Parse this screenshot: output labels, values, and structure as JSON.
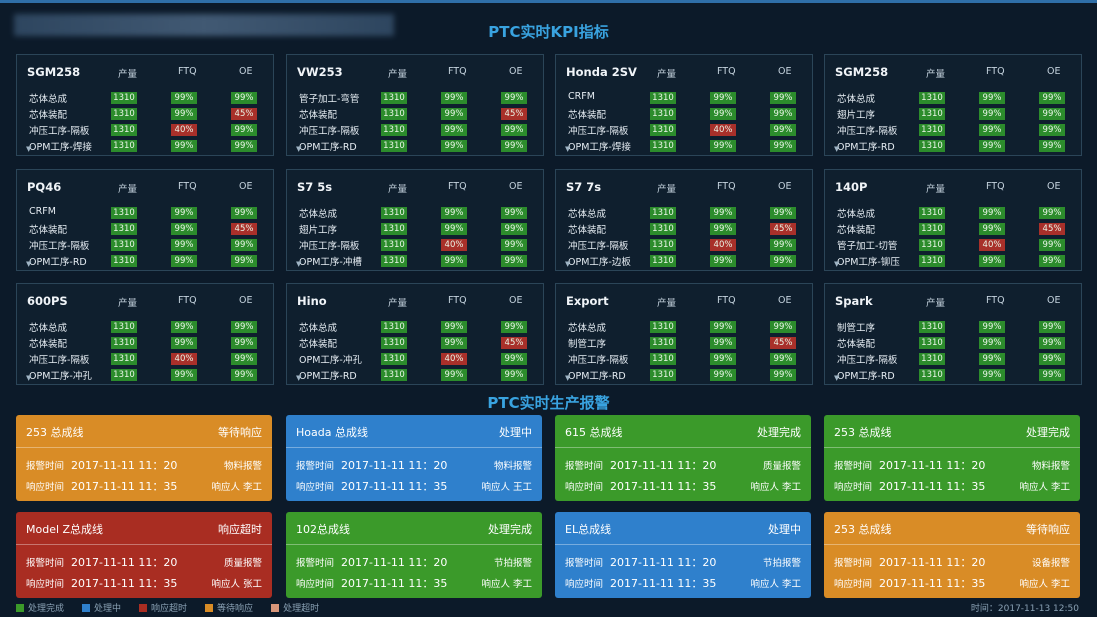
{
  "header": {
    "kpi_title": "PTC实时KPI指标",
    "alarm_title": "PTC实时生产报警"
  },
  "kpi_columns": {
    "output": "产量",
    "ftq": "FTQ",
    "oe": "OE"
  },
  "kpi_cards": [
    {
      "name": "SGM258",
      "rows": [
        [
          "芯体总成",
          "1310",
          "99%",
          "99%",
          "g",
          "g"
        ],
        [
          "芯体装配",
          "1310",
          "99%",
          "45%",
          "g",
          "r"
        ],
        [
          "冲压工序-隔板",
          "1310",
          "40%",
          "99%",
          "r",
          "g"
        ],
        [
          "OPM工序-焊接",
          "1310",
          "99%",
          "99%",
          "g",
          "g"
        ]
      ]
    },
    {
      "name": "VW253",
      "rows": [
        [
          "管子加工-弯管",
          "1310",
          "99%",
          "99%",
          "g",
          "g"
        ],
        [
          "芯体装配",
          "1310",
          "99%",
          "45%",
          "g",
          "r"
        ],
        [
          "冲压工序-隔板",
          "1310",
          "99%",
          "99%",
          "g",
          "g"
        ],
        [
          "OPM工序-RD",
          "1310",
          "99%",
          "99%",
          "g",
          "g"
        ]
      ]
    },
    {
      "name": "Honda 2SV",
      "rows": [
        [
          "CRFM",
          "1310",
          "99%",
          "99%",
          "g",
          "g"
        ],
        [
          "芯体装配",
          "1310",
          "99%",
          "99%",
          "g",
          "g"
        ],
        [
          "冲压工序-隔板",
          "1310",
          "40%",
          "99%",
          "r",
          "g"
        ],
        [
          "OPM工序-焊接",
          "1310",
          "99%",
          "99%",
          "g",
          "g"
        ]
      ]
    },
    {
      "name": "SGM258",
      "rows": [
        [
          "芯体总成",
          "1310",
          "99%",
          "99%",
          "g",
          "g"
        ],
        [
          "翅片工序",
          "1310",
          "99%",
          "99%",
          "g",
          "g"
        ],
        [
          "冲压工序-隔板",
          "1310",
          "99%",
          "99%",
          "g",
          "g"
        ],
        [
          "OPM工序-RD",
          "1310",
          "99%",
          "99%",
          "g",
          "g"
        ]
      ]
    },
    {
      "name": "PQ46",
      "rows": [
        [
          "CRFM",
          "1310",
          "99%",
          "99%",
          "g",
          "g"
        ],
        [
          "芯体装配",
          "1310",
          "99%",
          "45%",
          "g",
          "r"
        ],
        [
          "冲压工序-隔板",
          "1310",
          "99%",
          "99%",
          "g",
          "g"
        ],
        [
          "OPM工序-RD",
          "1310",
          "99%",
          "99%",
          "g",
          "g"
        ]
      ]
    },
    {
      "name": "S7 5s",
      "rows": [
        [
          "芯体总成",
          "1310",
          "99%",
          "99%",
          "g",
          "g"
        ],
        [
          "翅片工序",
          "1310",
          "99%",
          "99%",
          "g",
          "g"
        ],
        [
          "冲压工序-隔板",
          "1310",
          "40%",
          "99%",
          "r",
          "g"
        ],
        [
          "OPM工序-冲槽",
          "1310",
          "99%",
          "99%",
          "g",
          "g"
        ]
      ]
    },
    {
      "name": "S7 7s",
      "rows": [
        [
          "芯体总成",
          "1310",
          "99%",
          "99%",
          "g",
          "g"
        ],
        [
          "芯体装配",
          "1310",
          "99%",
          "45%",
          "g",
          "r"
        ],
        [
          "冲压工序-隔板",
          "1310",
          "40%",
          "99%",
          "r",
          "g"
        ],
        [
          "OPM工序-边板",
          "1310",
          "99%",
          "99%",
          "g",
          "g"
        ]
      ]
    },
    {
      "name": "140P",
      "rows": [
        [
          "芯体总成",
          "1310",
          "99%",
          "99%",
          "g",
          "g"
        ],
        [
          "芯体装配",
          "1310",
          "99%",
          "45%",
          "g",
          "r"
        ],
        [
          "管子加工-切管",
          "1310",
          "40%",
          "99%",
          "r",
          "g"
        ],
        [
          "OPM工序-铆压",
          "1310",
          "99%",
          "99%",
          "g",
          "g"
        ]
      ]
    },
    {
      "name": "600PS",
      "rows": [
        [
          "芯体总成",
          "1310",
          "99%",
          "99%",
          "g",
          "g"
        ],
        [
          "芯体装配",
          "1310",
          "99%",
          "99%",
          "g",
          "g"
        ],
        [
          "冲压工序-隔板",
          "1310",
          "40%",
          "99%",
          "r",
          "g"
        ],
        [
          "OPM工序-冲孔",
          "1310",
          "99%",
          "99%",
          "g",
          "g"
        ]
      ]
    },
    {
      "name": "Hino",
      "rows": [
        [
          "芯体总成",
          "1310",
          "99%",
          "99%",
          "g",
          "g"
        ],
        [
          "芯体装配",
          "1310",
          "99%",
          "45%",
          "g",
          "r"
        ],
        [
          "OPM工序-冲孔",
          "1310",
          "40%",
          "99%",
          "r",
          "g"
        ],
        [
          "OPM工序-RD",
          "1310",
          "99%",
          "99%",
          "g",
          "g"
        ]
      ]
    },
    {
      "name": "Export",
      "rows": [
        [
          "芯体总成",
          "1310",
          "99%",
          "99%",
          "g",
          "g"
        ],
        [
          "制管工序",
          "1310",
          "99%",
          "45%",
          "g",
          "r"
        ],
        [
          "冲压工序-隔板",
          "1310",
          "99%",
          "99%",
          "g",
          "g"
        ],
        [
          "OPM工序-RD",
          "1310",
          "99%",
          "99%",
          "g",
          "g"
        ]
      ]
    },
    {
      "name": "Spark",
      "rows": [
        [
          "制管工序",
          "1310",
          "99%",
          "99%",
          "g",
          "g"
        ],
        [
          "芯体装配",
          "1310",
          "99%",
          "99%",
          "g",
          "g"
        ],
        [
          "冲压工序-隔板",
          "1310",
          "99%",
          "99%",
          "g",
          "g"
        ],
        [
          "OPM工序-RD",
          "1310",
          "99%",
          "99%",
          "g",
          "g"
        ]
      ]
    }
  ],
  "alarm_labels": {
    "alarm_time": "报警时间",
    "response_time": "响应时间",
    "responder": "响应人"
  },
  "alarms": [
    {
      "line": "253 总成线",
      "status": "等待响应",
      "color": "orange",
      "alarm_time": "2017-11-11 11：20",
      "type": "物料报警",
      "response_time": "2017-11-11 11：35",
      "responder": "李工"
    },
    {
      "line": "Hoada 总成线",
      "status": "处理中",
      "color": "blue",
      "alarm_time": "2017-11-11 11：20",
      "type": "物料报警",
      "response_time": "2017-11-11 11：35",
      "responder": "王工"
    },
    {
      "line": "615 总成线",
      "status": "处理完成",
      "color": "green",
      "alarm_time": "2017-11-11 11：20",
      "type": "质量报警",
      "response_time": "2017-11-11 11：35",
      "responder": "李工"
    },
    {
      "line": "253 总成线",
      "status": "处理完成",
      "color": "green",
      "alarm_time": "2017-11-11 11：20",
      "type": "物料报警",
      "response_time": "2017-11-11 11：35",
      "responder": "李工"
    },
    {
      "line": "Model Z总成线",
      "status": "响应超时",
      "color": "red",
      "alarm_time": "2017-11-11 11：20",
      "type": "质量报警",
      "response_time": "2017-11-11 11：35",
      "responder": "张工"
    },
    {
      "line": "102总成线",
      "status": "处理完成",
      "color": "green",
      "alarm_time": "2017-11-11 11：20",
      "type": "节拍报警",
      "response_time": "2017-11-11 11：35",
      "responder": "李工"
    },
    {
      "line": "EL总成线",
      "status": "处理中",
      "color": "blue",
      "alarm_time": "2017-11-11 11：20",
      "type": "节拍报警",
      "response_time": "2017-11-11 11：35",
      "responder": "李工"
    },
    {
      "line": "253 总成线",
      "status": "等待响应",
      "color": "orange",
      "alarm_time": "2017-11-11 11：20",
      "type": "设备报警",
      "response_time": "2017-11-11 11：35",
      "responder": "李工"
    }
  ],
  "legend": [
    {
      "label": "处理完成",
      "color": "#3b9a2a"
    },
    {
      "label": "处理中",
      "color": "#2f80cc"
    },
    {
      "label": "响应超时",
      "color": "#a92d22"
    },
    {
      "label": "等待响应",
      "color": "#d98c26"
    },
    {
      "label": "处理超时",
      "color": "#d8967a"
    }
  ],
  "footer": {
    "time_label": "时间：2017-11-13 12:50"
  }
}
